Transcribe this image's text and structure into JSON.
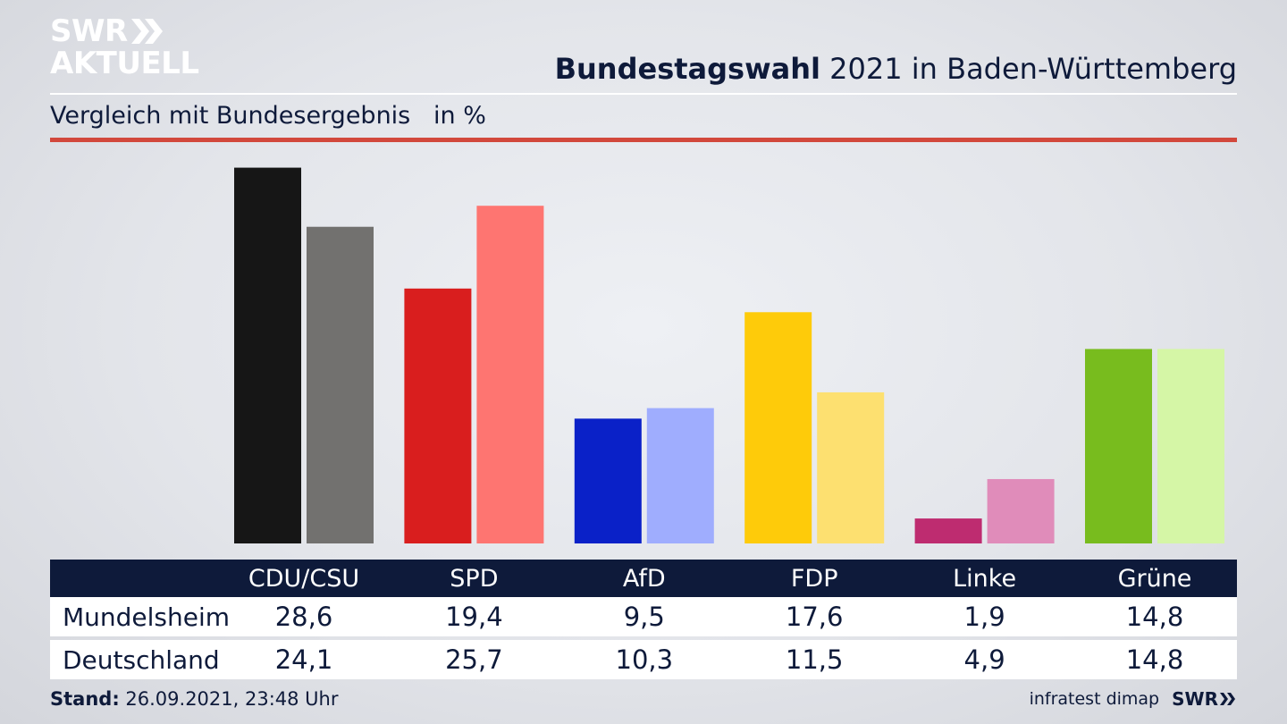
{
  "logo": {
    "line1": "SWR",
    "line2": "AKTUELL"
  },
  "title": {
    "bold": "Bundestagswahl",
    "rest": " 2021 in Baden-Württemberg"
  },
  "subtitle": "Vergleich mit Bundesergebnis   in %",
  "colors": {
    "accent_rule": "#d2483c",
    "table_header": "#0e1a3a",
    "text": "#0e1a3a"
  },
  "chart_data": {
    "type": "bar",
    "categories": [
      "CDU/CSU",
      "SPD",
      "AfD",
      "FDP",
      "Linke",
      "Grüne"
    ],
    "series": [
      {
        "name": "Mundelsheim",
        "values": [
          28.6,
          19.4,
          9.5,
          17.6,
          1.9,
          14.8
        ],
        "colors": [
          "#161616",
          "#d91e1e",
          "#0a21c8",
          "#fecb0a",
          "#be2c70",
          "#78bc1e"
        ]
      },
      {
        "name": "Deutschland",
        "values": [
          24.1,
          25.7,
          10.3,
          11.5,
          4.9,
          14.8
        ],
        "colors": [
          "#72716f",
          "#fe7571",
          "#9fadfe",
          "#fde070",
          "#e08cba",
          "#d5f6a6"
        ]
      }
    ],
    "grid": false,
    "legend": "none"
  },
  "table": {
    "rows": [
      {
        "label": "Mundelsheim",
        "values": [
          "28,6",
          "19,4",
          "9,5",
          "17,6",
          "1,9",
          "14,8"
        ]
      },
      {
        "label": "Deutschland",
        "values": [
          "24,1",
          "25,7",
          "10,3",
          "11,5",
          "4,9",
          "14,8"
        ]
      }
    ]
  },
  "footer": {
    "stand_label": "Stand:",
    "stand_value": " 26.09.2021, 23:48 Uhr",
    "source": "infratest dimap",
    "brand": "SWR"
  }
}
